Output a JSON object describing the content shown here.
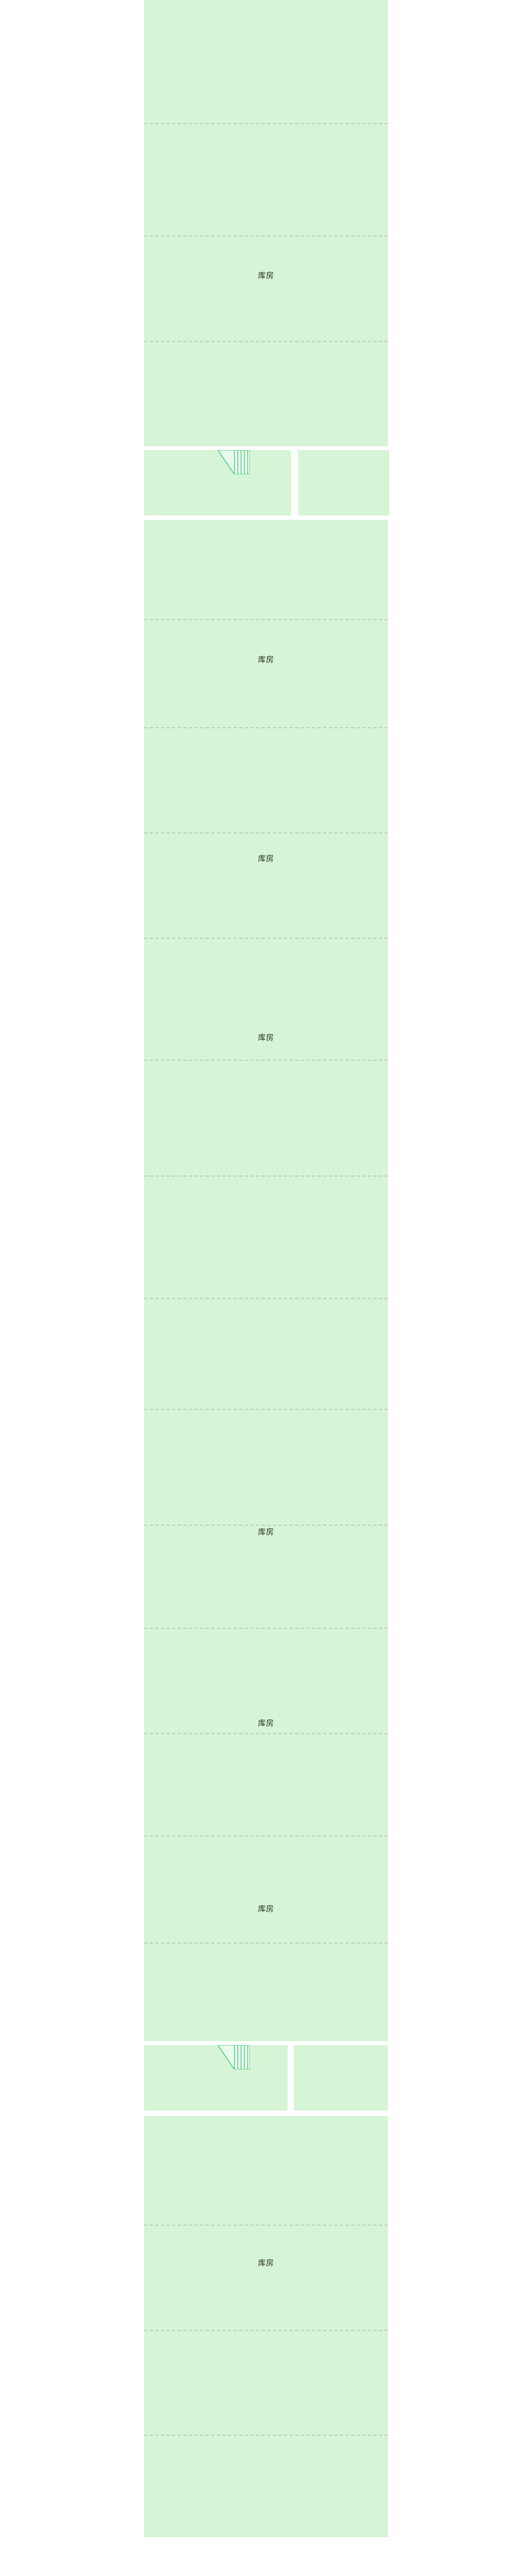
{
  "colors": {
    "background": "#ffffff",
    "room_fill": "#d6f4d6",
    "divider": "#b9d4bf",
    "stair_line": "#5ecf8a",
    "stair_fill": "#e9fbef"
  },
  "labels": {
    "room_a": "库房",
    "room_b": "库房",
    "room_c": "库房",
    "room_d": "库房",
    "room_e": "库房",
    "room_f": "库房",
    "room_g": "库房",
    "room_h": "库房",
    "room_i": "库房"
  },
  "icons": {
    "stair": "stair-icon"
  }
}
